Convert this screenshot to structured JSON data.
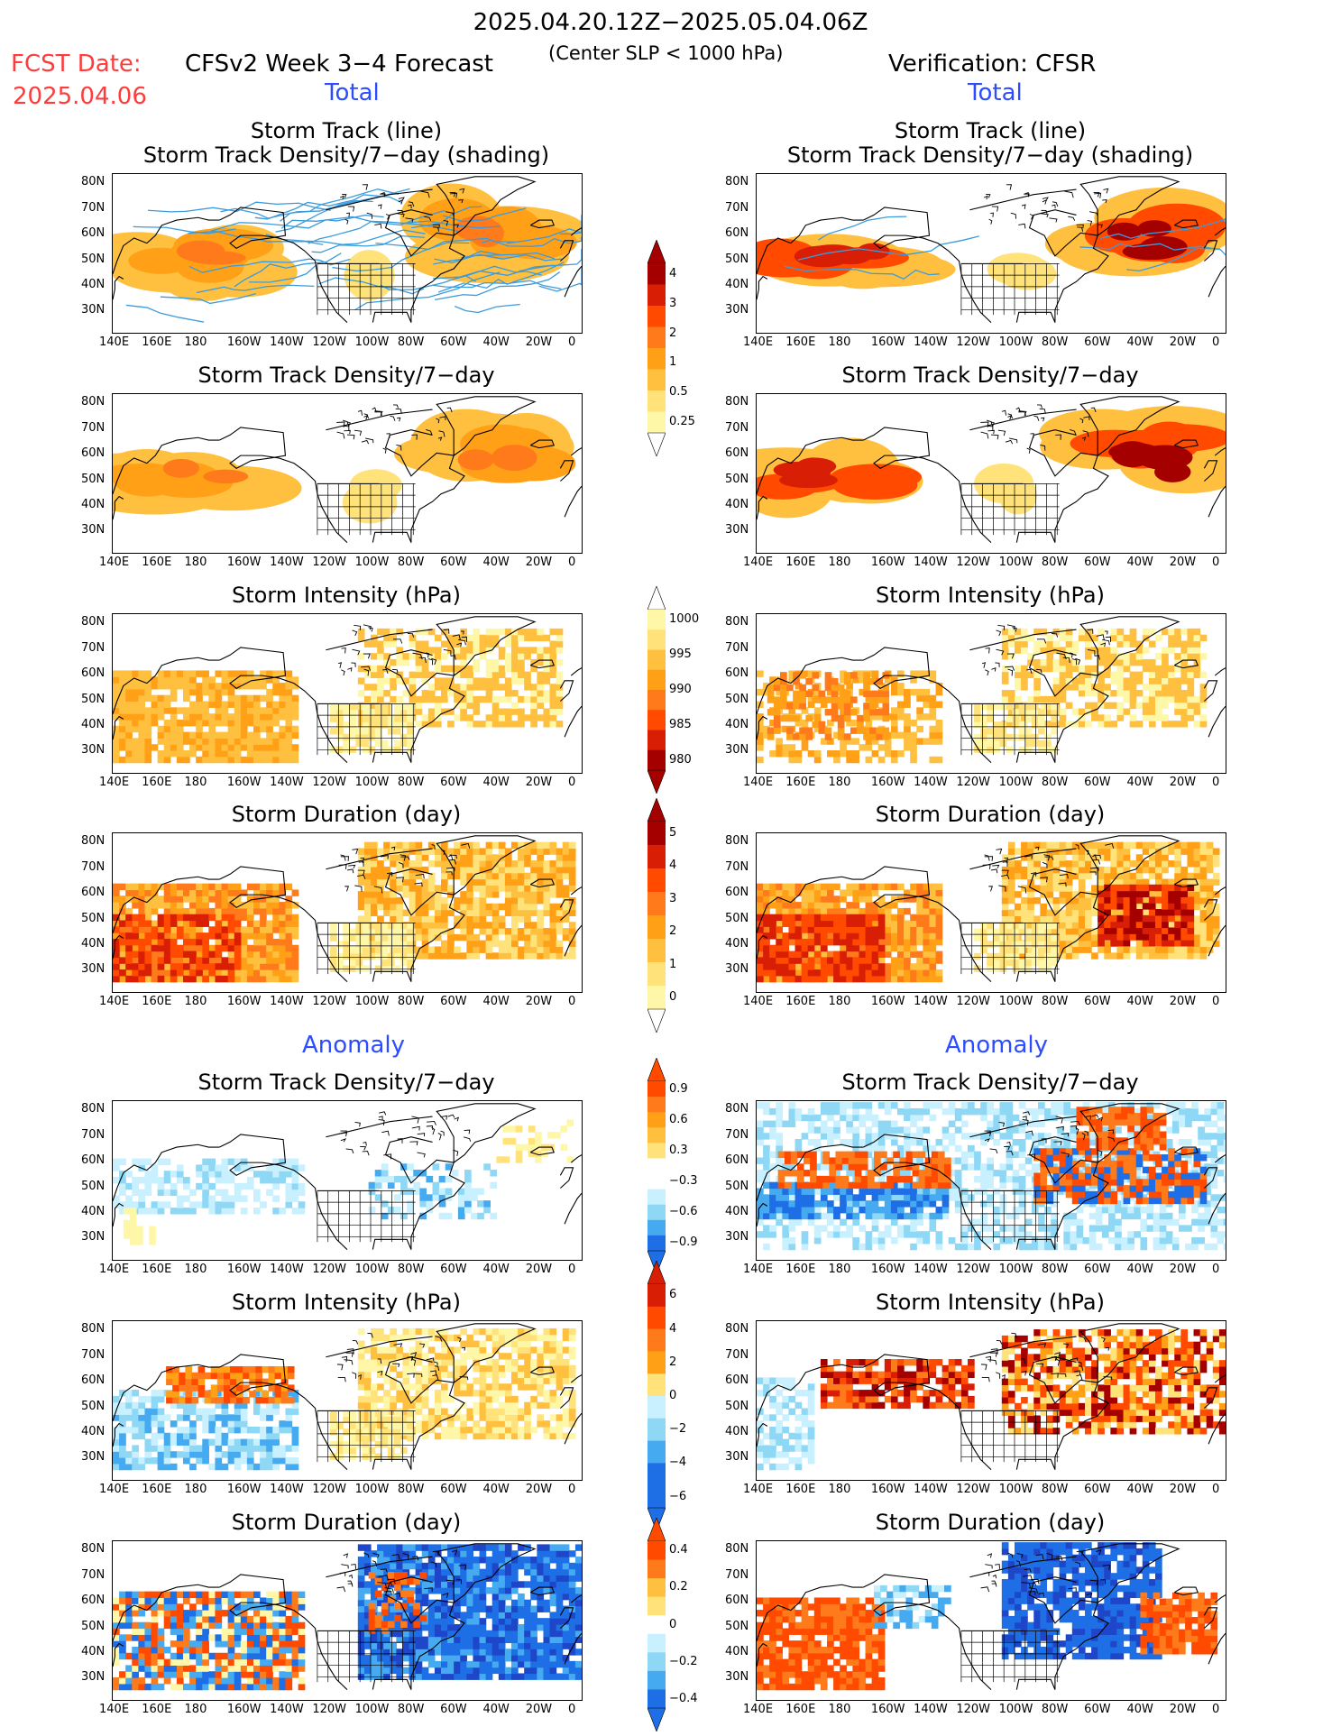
{
  "header": {
    "date_range": "2025.04.20.12Z−2025.05.04.06Z",
    "fcst_label": "FCST Date:",
    "fcst_date": "2025.04.06",
    "left_title": "CFSv2 Week 3−4 Forecast",
    "subtitle": "(Center SLP < 1000 hPa)",
    "right_title": "Verification: CFSR"
  },
  "sections": {
    "total": "Total",
    "anomaly": "Anomaly"
  },
  "panel_titles": {
    "track": "Storm Track (line)\nStorm Track Density/7−day (shading)",
    "density": "Storm Track Density/7−day",
    "intensity": "Storm Intensity (hPa)",
    "duration": "Storm Duration (day)"
  },
  "axes": {
    "lat_labels": [
      "80N",
      "70N",
      "60N",
      "50N",
      "40N",
      "30N"
    ],
    "lon_labels": [
      "140E",
      "160E",
      "180",
      "160W",
      "140W",
      "120W",
      "100W",
      "80W",
      "60W",
      "40W",
      "20W",
      "0"
    ]
  },
  "colorbars": [
    {
      "name": "total-density",
      "labels": [
        "4",
        "3",
        "2",
        "1",
        "0.5",
        "0.25"
      ]
    },
    {
      "name": "total-intensity",
      "labels": [
        "1000",
        "995",
        "990",
        "985",
        "980"
      ]
    },
    {
      "name": "total-duration",
      "labels": [
        "5",
        "4",
        "3",
        "2",
        "1",
        "0"
      ]
    },
    {
      "name": "anom-density",
      "labels": [
        "0.9",
        "0.6",
        "0.3",
        "−0.3",
        "−0.6",
        "−0.9"
      ]
    },
    {
      "name": "anom-intensity",
      "labels": [
        "6",
        "4",
        "2",
        "0",
        "−2",
        "−4",
        "−6"
      ]
    },
    {
      "name": "anom-duration",
      "labels": [
        "0.4",
        "0.2",
        "0",
        "−0.2",
        "−0.4"
      ]
    }
  ],
  "colors": {
    "warm": [
      "#fff7a8",
      "#ffe27a",
      "#ffc040",
      "#ffa017",
      "#ff7a1a",
      "#ff4a00",
      "#d81e05",
      "#a50000"
    ],
    "cool": [
      "#c8f0ff",
      "#8ed8f5",
      "#46aaf0",
      "#1e6ee6",
      "#1e46c8"
    ],
    "track_line": "#3c9bdc"
  }
}
